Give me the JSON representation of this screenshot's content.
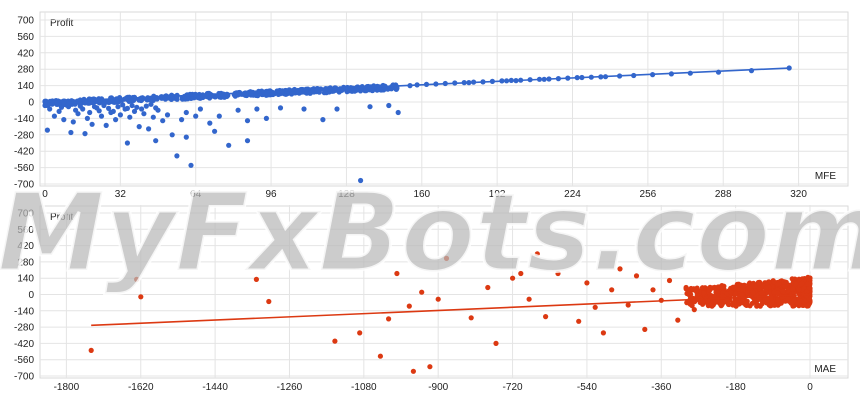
{
  "watermark": "MyFxBots.com",
  "colors": {
    "grid": "#e4e4e4",
    "frame": "#d9d9d9"
  },
  "chart_data": [
    {
      "type": "scatter",
      "ylabel": "Profit",
      "xlabel": "MFE",
      "color": "#3366cc",
      "xlim": [
        0,
        324
      ],
      "ylim": [
        -700,
        700
      ],
      "xticks": [
        "0",
        "32",
        "64",
        "96",
        "128",
        "160",
        "192",
        "224",
        "256",
        "288",
        "320"
      ],
      "xtick_values": [
        0,
        32,
        64,
        96,
        128,
        160,
        192,
        224,
        256,
        288,
        320
      ],
      "yticks": [
        "700",
        "560",
        "420",
        "280",
        "140",
        "0",
        "-140",
        "-280",
        "-420",
        "-560",
        "-700"
      ],
      "ytick_values": [
        700,
        560,
        420,
        280,
        140,
        0,
        -140,
        -280,
        -420,
        -560,
        -700
      ],
      "trendline": [
        [
          0,
          0
        ],
        [
          316,
          290
        ]
      ],
      "points": [
        [
          0,
          -30
        ],
        [
          2,
          -60
        ],
        [
          4,
          -120
        ],
        [
          5,
          -20
        ],
        [
          6,
          -80
        ],
        [
          8,
          -150
        ],
        [
          10,
          -40
        ],
        [
          12,
          -170
        ],
        [
          14,
          -100
        ],
        [
          16,
          -60
        ],
        [
          18,
          -140
        ],
        [
          20,
          -190
        ],
        [
          22,
          -50
        ],
        [
          24,
          -120
        ],
        [
          26,
          -200
        ],
        [
          28,
          -90
        ],
        [
          30,
          -150
        ],
        [
          32,
          -110
        ],
        [
          34,
          -60
        ],
        [
          36,
          -130
        ],
        [
          38,
          -80
        ],
        [
          40,
          -210
        ],
        [
          42,
          -100
        ],
        [
          44,
          -230
        ],
        [
          46,
          -130
        ],
        [
          48,
          -70
        ],
        [
          50,
          -160
        ],
        [
          52,
          -110
        ],
        [
          54,
          -280
        ],
        [
          56,
          -460
        ],
        [
          58,
          -150
        ],
        [
          60,
          -90
        ],
        [
          62,
          -540
        ],
        [
          64,
          -120
        ],
        [
          66,
          -60
        ],
        [
          70,
          -180
        ],
        [
          74,
          -120
        ],
        [
          78,
          -370
        ],
        [
          82,
          -70
        ],
        [
          86,
          -160
        ],
        [
          90,
          -60
        ],
        [
          94,
          -140
        ],
        [
          100,
          -50
        ],
        [
          110,
          -60
        ],
        [
          118,
          -150
        ],
        [
          124,
          -60
        ],
        [
          134,
          -670
        ],
        [
          138,
          -40
        ],
        [
          146,
          -30
        ],
        [
          150,
          -90
        ],
        [
          3,
          -10
        ],
        [
          7,
          -45
        ],
        [
          9,
          -25
        ],
        [
          13,
          -70
        ],
        [
          15,
          -35
        ],
        [
          19,
          -90
        ],
        [
          21,
          -40
        ],
        [
          23,
          -75
        ],
        [
          25,
          -30
        ],
        [
          27,
          -55
        ],
        [
          29,
          -80
        ],
        [
          31,
          -40
        ],
        [
          33,
          -25
        ],
        [
          35,
          -55
        ],
        [
          37,
          -30
        ],
        [
          39,
          -45
        ],
        [
          41,
          -60
        ],
        [
          43,
          -35
        ],
        [
          45,
          -20
        ],
        [
          47,
          -50
        ],
        [
          1,
          -240
        ],
        [
          11,
          -260
        ],
        [
          17,
          -270
        ],
        [
          35,
          -350
        ],
        [
          47,
          -330
        ],
        [
          60,
          -300
        ],
        [
          72,
          -250
        ],
        [
          86,
          -330
        ]
      ],
      "band": {
        "x_from": 0,
        "x_to": 150,
        "offset_min": -30,
        "offset_max": 10,
        "count": 520
      },
      "upper_points": [
        [
          155,
          140
        ],
        [
          158,
          146
        ],
        [
          162,
          150
        ],
        [
          166,
          154
        ],
        [
          170,
          158
        ],
        [
          174,
          162
        ],
        [
          178,
          166
        ],
        [
          182,
          170
        ],
        [
          186,
          172
        ],
        [
          190,
          176
        ],
        [
          194,
          180
        ],
        [
          198,
          184
        ],
        [
          202,
          186
        ],
        [
          206,
          190
        ],
        [
          210,
          194
        ],
        [
          214,
          196
        ],
        [
          218,
          200
        ],
        [
          222,
          204
        ],
        [
          226,
          208
        ],
        [
          232,
          212
        ],
        [
          238,
          216
        ],
        [
          244,
          222
        ],
        [
          250,
          226
        ],
        [
          258,
          234
        ],
        [
          266,
          240
        ],
        [
          274,
          246
        ],
        [
          286,
          254
        ],
        [
          300,
          268
        ],
        [
          316,
          290
        ],
        [
          180,
          166
        ],
        [
          196,
          181
        ],
        [
          200,
          183
        ],
        [
          212,
          194
        ],
        [
          228,
          209
        ],
        [
          236,
          214
        ]
      ]
    },
    {
      "type": "scatter",
      "ylabel": "Profit",
      "xlabel": "MAE",
      "color": "#dc3912",
      "xlim": [
        -1830,
        0
      ],
      "ylim": [
        -700,
        700
      ],
      "xticks": [
        "-1800",
        "-1620",
        "-1440",
        "-1260",
        "-1080",
        "-900",
        "-720",
        "-540",
        "-360",
        "-180",
        "0"
      ],
      "xtick_values": [
        -1800,
        -1620,
        -1440,
        -1260,
        -1080,
        -900,
        -720,
        -540,
        -360,
        -180,
        0
      ],
      "yticks": [
        "700",
        "560",
        "420",
        "280",
        "140",
        "0",
        "-140",
        "-280",
        "-420",
        "-560",
        "-700"
      ],
      "ytick_values": [
        700,
        560,
        420,
        280,
        140,
        0,
        -140,
        -280,
        -420,
        -560,
        -700
      ],
      "trendline": [
        [
          -1740,
          -265
        ],
        [
          0,
          0
        ]
      ],
      "points": [
        [
          -1740,
          -480
        ],
        [
          -1630,
          130
        ],
        [
          -1620,
          -20
        ],
        [
          -1340,
          130
        ],
        [
          -1310,
          -60
        ],
        [
          -1150,
          -400
        ],
        [
          -1090,
          -330
        ],
        [
          -1040,
          -530
        ],
        [
          -1020,
          -210
        ],
        [
          -1000,
          180
        ],
        [
          -970,
          -100
        ],
        [
          -960,
          -660
        ],
        [
          -940,
          20
        ],
        [
          -920,
          -620
        ],
        [
          -900,
          -40
        ],
        [
          -880,
          310
        ],
        [
          -820,
          -200
        ],
        [
          -780,
          60
        ],
        [
          -760,
          -420
        ],
        [
          -720,
          140
        ],
        [
          -700,
          180
        ],
        [
          -680,
          -40
        ],
        [
          -660,
          350
        ],
        [
          -640,
          -190
        ],
        [
          -610,
          180
        ],
        [
          -560,
          -230
        ],
        [
          -540,
          100
        ],
        [
          -520,
          -110
        ],
        [
          -500,
          -330
        ],
        [
          -480,
          40
        ],
        [
          -460,
          220
        ],
        [
          -440,
          -90
        ],
        [
          -420,
          160
        ],
        [
          -400,
          -300
        ],
        [
          -380,
          40
        ],
        [
          -360,
          -50
        ],
        [
          -340,
          120
        ],
        [
          -320,
          -220
        ],
        [
          -300,
          60
        ],
        [
          -280,
          -130
        ]
      ],
      "cluster": {
        "x_from": -300,
        "x_to": 0,
        "y_from": -100,
        "y_to": 150,
        "count": 620
      }
    }
  ]
}
